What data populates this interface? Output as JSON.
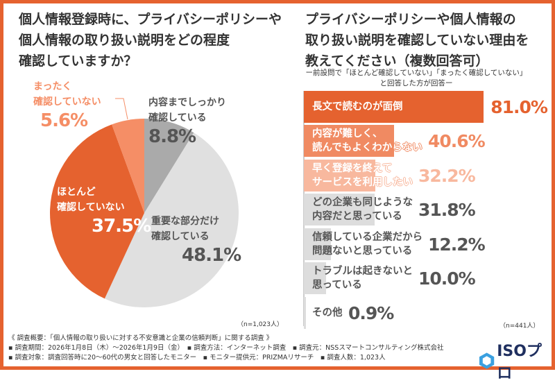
{
  "left": {
    "title_lines": [
      "個人情報登録時に、プライバシーポリシーや",
      "個人情報の取り扱い説明をどの程度",
      "確認していますか？"
    ],
    "n": "（n=1,023人）"
  },
  "right": {
    "title_lines": [
      "プライバシーポリシーや個人情報の",
      "取り扱い説明を確認していない理由を",
      "教えてください（複数回答可）"
    ],
    "sub_lines": [
      "ー前設問で「ほとんど確認していない」「まったく確認していない」",
      "と回答した方が回答ー"
    ],
    "n": "（n=441人）"
  },
  "chart_data": [
    {
      "type": "pie",
      "slices": [
        {
          "label": "内容までしっかり確認している",
          "display": [
            "内容までしっかり",
            "確認している"
          ],
          "value": 8.8,
          "value_label": "8.8%",
          "color": "#aaaaaa"
        },
        {
          "label": "重要な部分だけ確認している",
          "display": [
            "重要な部分だけ",
            "確認している"
          ],
          "value": 48.1,
          "value_label": "48.1%",
          "color": "#e0e0e0"
        },
        {
          "label": "ほとんど確認していない",
          "display": [
            "ほとんど",
            "確認していない"
          ],
          "value": 37.5,
          "value_label": "37.5%",
          "color": "#e5622f"
        },
        {
          "label": "まったく確認していない",
          "display": [
            "まったく",
            "確認していない"
          ],
          "value": 5.6,
          "value_label": "5.6%",
          "color": "#f58e66"
        }
      ]
    },
    {
      "type": "bar",
      "orientation": "horizontal",
      "xlim": [
        0,
        100
      ],
      "categories": [
        "長文で読むのが面倒",
        "内容が難しく、\n読んでもよくわからない",
        "早く登録を終えて\nサービスを利用したい",
        "どの企業も同じような\n内容だと思っている",
        "信頼している企業だから\n問題ないと思っている",
        "トラブルは起きないと\n思っている",
        "その他"
      ],
      "values": [
        81.0,
        40.6,
        32.2,
        31.8,
        12.2,
        10.0,
        0.9
      ],
      "value_labels": [
        "81.0%",
        "40.6%",
        "32.2%",
        "31.8%",
        "12.2%",
        "10.0%",
        "0.9%"
      ],
      "colors": [
        "#e5622f",
        "#f08a62",
        "#f8b89e",
        "#dddddd",
        "#dddddd",
        "#dddddd",
        "#dddddd"
      ],
      "text_colors": [
        "#e5622f",
        "#f08a62",
        "#f8b89e",
        "#555555",
        "#555555",
        "#555555",
        "#555555"
      ]
    }
  ],
  "footer": {
    "lines": [
      "《 調査概要：「個人情報の取り扱いに対する不安意識と企業の信頼判断」に関する調査 》",
      "▪ 調査期間：2026年1月8日（木）～2026年1月9日（金）　▪ 調査方法：インターネット調査　▪ 調査元：NSSスマートコンサルティング株式会社",
      "▪ 調査対象：調査回答時に20～60代の男女と回答したモニター　▪ モニター提供元：PRIZMAリサーチ　▪ 調査人数：1,023人"
    ],
    "logo": "ISOプロ"
  }
}
